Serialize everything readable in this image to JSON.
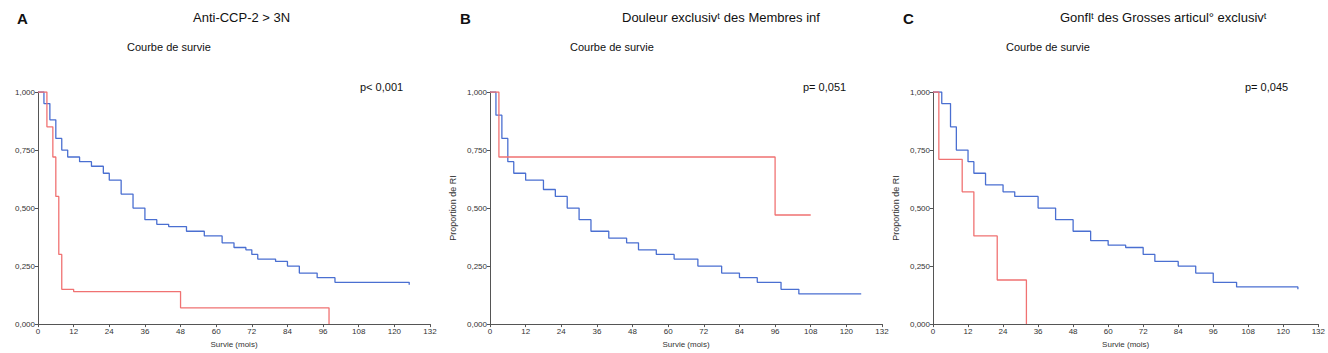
{
  "chart_data": [
    {
      "type": "line",
      "panel": "A",
      "title": "Anti-CCP-2 > 3N",
      "subtitle": "Courbe de survie",
      "annotation": "p< 0,001",
      "x_label": "Survie (mois)",
      "xlim": [
        0,
        132
      ],
      "xticks": [
        0,
        12,
        24,
        36,
        48,
        60,
        72,
        84,
        96,
        108,
        120,
        132
      ],
      "ylim": [
        0,
        1
      ],
      "yticks": [
        {
          "value": 0,
          "label": "0,000"
        },
        {
          "value": 0.25,
          "label": "0,250"
        },
        {
          "value": 0.5,
          "label": "0,500"
        },
        {
          "value": 0.75,
          "label": "0,750"
        },
        {
          "value": 1,
          "label": "1,000"
        }
      ],
      "grid": false,
      "line_style": "step",
      "series": [
        {
          "color": "#4a6fd1",
          "x": [
            0,
            2,
            4,
            6,
            8,
            10,
            14,
            18,
            22,
            24,
            28,
            32,
            36,
            40,
            44,
            50,
            56,
            62,
            66,
            70,
            72,
            74,
            80,
            84,
            88,
            94,
            100,
            125
          ],
          "values": [
            1,
            0.95,
            0.88,
            0.8,
            0.75,
            0.72,
            0.7,
            0.68,
            0.65,
            0.62,
            0.56,
            0.5,
            0.45,
            0.43,
            0.42,
            0.4,
            0.38,
            0.35,
            0.33,
            0.32,
            0.3,
            0.28,
            0.27,
            0.25,
            0.22,
            0.2,
            0.18,
            0.17
          ]
        },
        {
          "color": "#f07272",
          "x": [
            0,
            3,
            5,
            6,
            7,
            8,
            12,
            48,
            98
          ],
          "values": [
            1,
            0.85,
            0.72,
            0.55,
            0.3,
            0.15,
            0.14,
            0.07,
            0
          ]
        }
      ]
    },
    {
      "type": "line",
      "panel": "B",
      "title": "Douleur exclusivᵗ des Membres inf",
      "subtitle": "Courbe de survie",
      "annotation": "p= 0,051",
      "x_label": "Survie (mois)",
      "y_label": "Proportion de RI",
      "xlim": [
        0,
        132
      ],
      "xticks": [
        0,
        12,
        24,
        36,
        48,
        60,
        72,
        84,
        96,
        108,
        120,
        132
      ],
      "ylim": [
        0,
        1
      ],
      "yticks": [
        {
          "value": 0,
          "label": "0,000"
        },
        {
          "value": 0.25,
          "label": "0,250"
        },
        {
          "value": 0.5,
          "label": "0,500"
        },
        {
          "value": 0.75,
          "label": "0,750"
        },
        {
          "value": 1,
          "label": "1,000"
        }
      ],
      "grid": false,
      "line_style": "step",
      "series": [
        {
          "color": "#4a6fd1",
          "x": [
            0,
            2,
            4,
            6,
            8,
            12,
            18,
            22,
            26,
            30,
            34,
            40,
            46,
            50,
            56,
            62,
            70,
            78,
            84,
            90,
            98,
            104,
            125
          ],
          "values": [
            1,
            0.9,
            0.8,
            0.7,
            0.65,
            0.62,
            0.58,
            0.55,
            0.5,
            0.45,
            0.4,
            0.37,
            0.35,
            0.32,
            0.3,
            0.28,
            0.25,
            0.22,
            0.2,
            0.18,
            0.15,
            0.13,
            0.13
          ]
        },
        {
          "color": "#f07272",
          "x": [
            0,
            3,
            96,
            108
          ],
          "values": [
            1,
            0.72,
            0.47,
            0.47
          ]
        }
      ]
    },
    {
      "type": "line",
      "panel": "C",
      "title": "Gonflᵗ des Grosses articul° exclusivᵗ",
      "subtitle": "Courbe de survie",
      "annotation": "p= 0,045",
      "x_label": "Survie (mois)",
      "y_label": "Proportion de RI",
      "xlim": [
        0,
        132
      ],
      "xticks": [
        0,
        12,
        24,
        36,
        48,
        60,
        72,
        84,
        96,
        108,
        120,
        132
      ],
      "ylim": [
        0,
        1
      ],
      "yticks": [
        {
          "value": 0,
          "label": "0,000"
        },
        {
          "value": 0.25,
          "label": "0,250"
        },
        {
          "value": 0.5,
          "label": "0,500"
        },
        {
          "value": 0.75,
          "label": "0,750"
        },
        {
          "value": 1,
          "label": "1,000"
        }
      ],
      "grid": false,
      "line_style": "step",
      "series": [
        {
          "color": "#4a6fd1",
          "x": [
            0,
            3,
            6,
            8,
            12,
            14,
            18,
            24,
            28,
            36,
            42,
            48,
            54,
            60,
            66,
            72,
            76,
            84,
            90,
            96,
            104,
            125
          ],
          "values": [
            1,
            0.95,
            0.85,
            0.75,
            0.7,
            0.65,
            0.6,
            0.57,
            0.55,
            0.5,
            0.45,
            0.4,
            0.36,
            0.34,
            0.33,
            0.3,
            0.27,
            0.25,
            0.22,
            0.18,
            0.16,
            0.15
          ]
        },
        {
          "color": "#f07272",
          "x": [
            0,
            2,
            10,
            14,
            22,
            32
          ],
          "values": [
            1,
            0.71,
            0.57,
            0.38,
            0.19,
            0
          ]
        }
      ]
    }
  ]
}
